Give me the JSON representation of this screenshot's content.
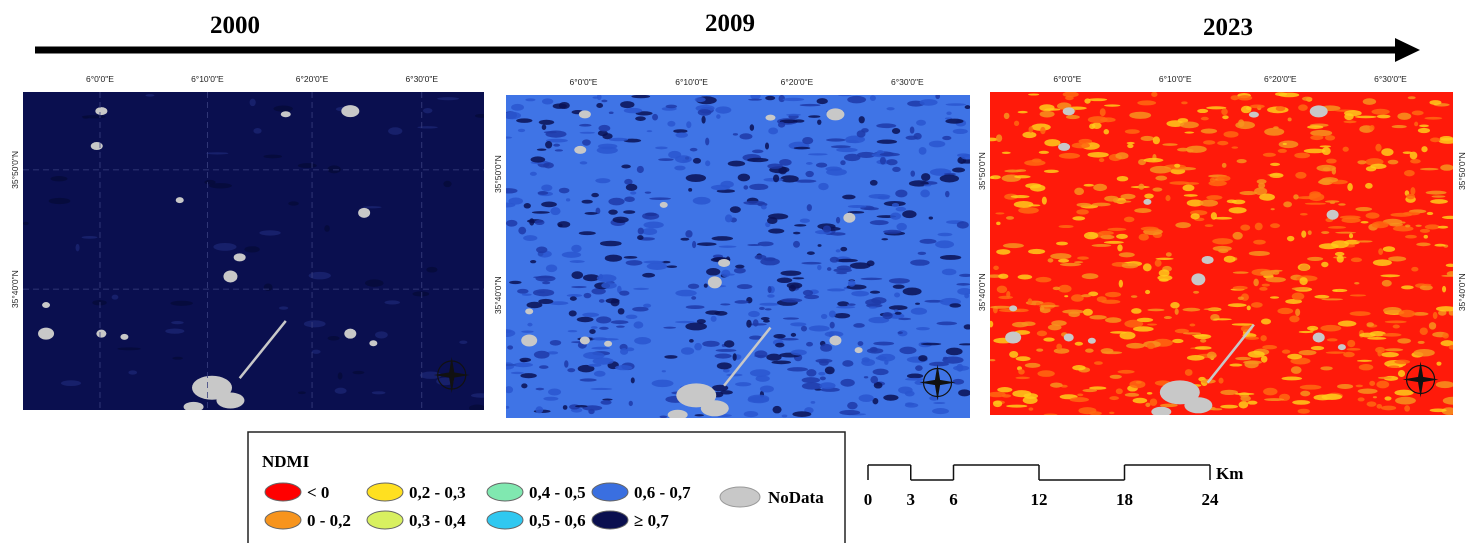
{
  "timeline": {
    "years": [
      "2000",
      "2009",
      "2023"
    ]
  },
  "graticule": {
    "lon": [
      "6°0'0\"E",
      "6°10'0\"E",
      "6°20'0\"E",
      "6°30'0\"E"
    ],
    "lat": [
      "35°50'0\"N",
      "35°40'0\"N"
    ]
  },
  "maps": [
    {
      "base_color": "#0a0f4f",
      "patch_colors": [
        "#060a3a",
        "#1a2370"
      ]
    },
    {
      "base_color": "#3f74e6",
      "patch_colors": [
        "#0b1255",
        "#1f3aa8",
        "#2a56cf"
      ]
    },
    {
      "base_color": "#ff1a0a",
      "patch_colors": [
        "#f7941d",
        "#ffcc1a",
        "#ff6a10"
      ]
    }
  ],
  "legend": {
    "title": "NDMI",
    "items": [
      {
        "label": "< 0",
        "color": "#ff0000"
      },
      {
        "label": "0 - 0,2",
        "color": "#f7941d"
      },
      {
        "label": "0,2 - 0,3",
        "color": "#ffe020"
      },
      {
        "label": "0,3 - 0,4",
        "color": "#d8f060"
      },
      {
        "label": "0,4 - 0,5",
        "color": "#80e8b0"
      },
      {
        "label": "0,5 - 0,6",
        "color": "#30c8f0"
      },
      {
        "label": "0,6 - 0,7",
        "color": "#3a6fe0"
      },
      {
        "label": "≥ 0,7",
        "color": "#0a0f4f"
      }
    ],
    "nodata": {
      "label": "NoData",
      "color": "#c8c8c8"
    }
  },
  "scale_bar": {
    "ticks": [
      0,
      3,
      6,
      12,
      18,
      24
    ],
    "unit": "Km"
  }
}
